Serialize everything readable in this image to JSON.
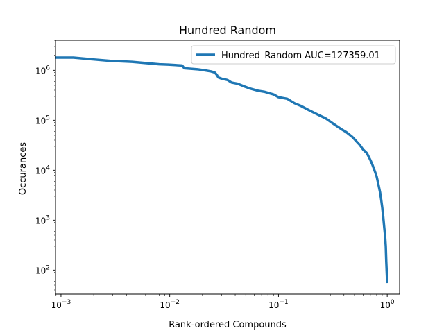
{
  "chart_data": {
    "type": "line",
    "title": "Hundred Random",
    "xlabel": "Rank-ordered Compounds",
    "ylabel": "Occurances",
    "xscale": "log",
    "yscale": "log",
    "xlim": [
      0.00089,
      1.3
    ],
    "ylim": [
      33,
      4000000
    ],
    "grid": false,
    "legend_position": "top-right",
    "xticks": [
      {
        "value": 0.001,
        "base": "10",
        "exp": "−3"
      },
      {
        "value": 0.01,
        "base": "10",
        "exp": "−2"
      },
      {
        "value": 0.1,
        "base": "10",
        "exp": "−1"
      },
      {
        "value": 1,
        "base": "10",
        "exp": "0"
      }
    ],
    "yticks": [
      {
        "value": 100,
        "base": "10",
        "exp": "2"
      },
      {
        "value": 1000,
        "base": "10",
        "exp": "3"
      },
      {
        "value": 10000,
        "base": "10",
        "exp": "4"
      },
      {
        "value": 100000,
        "base": "10",
        "exp": "5"
      },
      {
        "value": 1000000,
        "base": "10",
        "exp": "6"
      }
    ],
    "series": [
      {
        "name": "Hundred_Random AUC=127359.01",
        "color": "#1f77b4",
        "x": [
          0.00089,
          0.0013,
          0.002,
          0.0028,
          0.0045,
          0.006,
          0.008,
          0.0097,
          0.013,
          0.0136,
          0.018,
          0.021,
          0.024,
          0.026,
          0.027,
          0.028,
          0.03,
          0.034,
          0.037,
          0.042,
          0.048,
          0.055,
          0.065,
          0.075,
          0.09,
          0.1,
          0.12,
          0.14,
          0.16,
          0.19,
          0.23,
          0.27,
          0.32,
          0.38,
          0.42,
          0.48,
          0.52,
          0.56,
          0.6,
          0.65,
          0.7,
          0.73,
          0.77,
          0.8,
          0.83,
          0.86,
          0.88,
          0.9,
          0.92,
          0.94,
          0.955,
          0.97,
          0.98,
          0.99,
          0.995,
          1.0
        ],
        "y": [
          1800000,
          1800000,
          1650000,
          1550000,
          1480000,
          1400000,
          1320000,
          1300000,
          1250000,
          1100000,
          1050000,
          1000000,
          950000,
          900000,
          820000,
          720000,
          680000,
          640000,
          570000,
          540000,
          480000,
          430000,
          390000,
          370000,
          330000,
          290000,
          270000,
          220000,
          195000,
          160000,
          130000,
          110000,
          85000,
          66000,
          58000,
          46000,
          38000,
          32000,
          26000,
          22000,
          16000,
          13000,
          9500,
          7500,
          5200,
          3600,
          2600,
          1800,
          1150,
          700,
          500,
          300,
          150,
          90,
          70,
          55
        ]
      }
    ]
  }
}
